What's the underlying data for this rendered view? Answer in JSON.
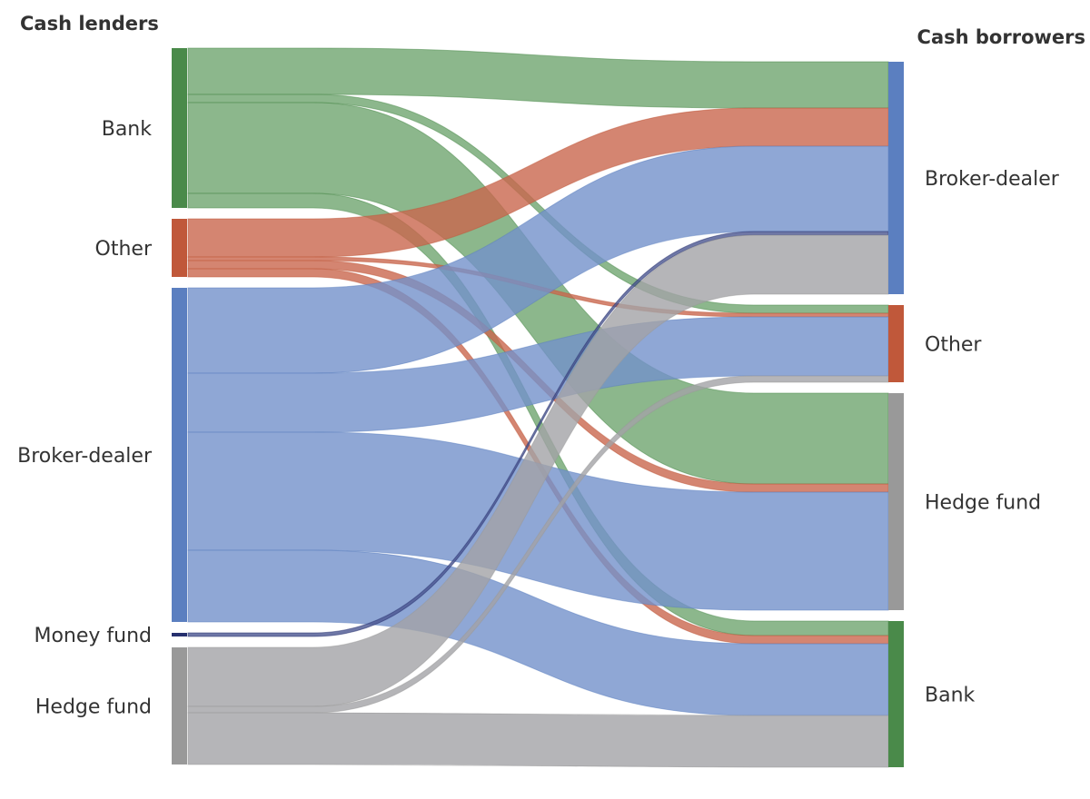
{
  "chart_data": {
    "type": "sankey",
    "left_title": "Cash lenders",
    "right_title": "Cash borrowers",
    "sources": [
      {
        "name": "Bank",
        "color": "#4a8a4a",
        "link_color": "#6fa56f"
      },
      {
        "name": "Other",
        "color": "#c0583a",
        "link_color": "#c9664d"
      },
      {
        "name": "Broker-dealer",
        "color": "#5b7fc0",
        "link_color": "#7391cb"
      },
      {
        "name": "Money fund",
        "color": "#26306e",
        "link_color": "#4a5590"
      },
      {
        "name": "Hedge fund",
        "color": "#999999",
        "link_color": "#a2a3a6"
      }
    ],
    "targets": [
      {
        "name": "Broker-dealer",
        "color": "#5b7fc0"
      },
      {
        "name": "Other",
        "color": "#c0583a"
      },
      {
        "name": "Hedge fund",
        "color": "#999999"
      },
      {
        "name": "Bank",
        "color": "#4a8a4a"
      }
    ],
    "flows": [
      {
        "source": "Bank",
        "target": "Broker-dealer",
        "value": 51
      },
      {
        "source": "Bank",
        "target": "Other",
        "value": 9
      },
      {
        "source": "Bank",
        "target": "Hedge fund",
        "value": 100
      },
      {
        "source": "Bank",
        "target": "Bank",
        "value": 16
      },
      {
        "source": "Other",
        "target": "Broker-dealer",
        "value": 42
      },
      {
        "source": "Other",
        "target": "Other",
        "value": 4
      },
      {
        "source": "Other",
        "target": "Hedge fund",
        "value": 9
      },
      {
        "source": "Other",
        "target": "Bank",
        "value": 9
      },
      {
        "source": "Broker-dealer",
        "target": "Broker-dealer",
        "value": 94
      },
      {
        "source": "Broker-dealer",
        "target": "Other",
        "value": 65
      },
      {
        "source": "Broker-dealer",
        "target": "Hedge fund",
        "value": 130
      },
      {
        "source": "Broker-dealer",
        "target": "Bank",
        "value": 79
      },
      {
        "source": "Money fund",
        "target": "Broker-dealer",
        "value": 4
      },
      {
        "source": "Hedge fund",
        "target": "Broker-dealer",
        "value": 65
      },
      {
        "source": "Hedge fund",
        "target": "Other",
        "value": 7
      },
      {
        "source": "Hedge fund",
        "target": "Bank",
        "value": 57
      }
    ]
  }
}
